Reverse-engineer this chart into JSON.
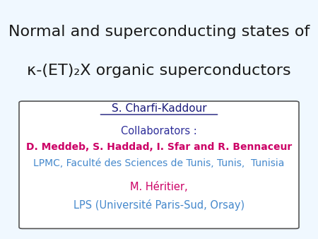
{
  "title_line1": "Normal and superconducting states of",
  "title_line2": "κ-(ET)₂X organic superconductors",
  "title_bg_color": "#d6eaf8",
  "title_text_color": "#1a1a1a",
  "body_bg_color": "#ffffff",
  "box_border_color": "#555555",
  "name_text": "S. Charfi-Kaddour",
  "name_color": "#1a1a7a",
  "collab_label": "Collaborators :",
  "collab_label_color": "#2e2e9a",
  "collab_names": "D. Meddeb, S. Haddad, I. Sfar and R. Bennaceur",
  "collab_names_color": "#cc0066",
  "affil1": "LPMC, Faculté des Sciences de Tunis, Tunis,  Tunisia",
  "affil1_color": "#4488cc",
  "name2": "M. Héritier,",
  "name2_color": "#cc0066",
  "affil2": "LPS (Université Paris-Sud, Orsay)",
  "affil2_color": "#4488cc",
  "fig_bg_color": "#f0f8ff"
}
